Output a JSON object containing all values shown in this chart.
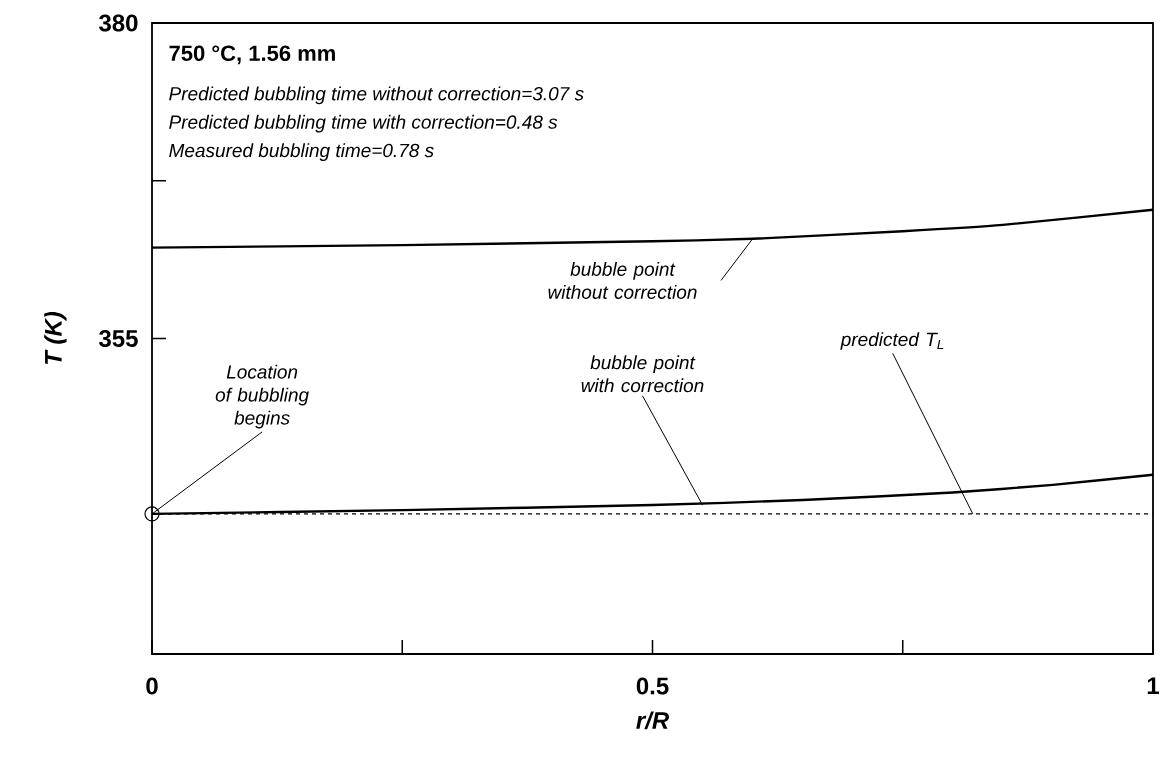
{
  "chart_data": {
    "type": "line",
    "title": "750 °C, 1.56 mm",
    "xlabel": "r/R",
    "ylabel": "T (K)",
    "xlim": [
      0,
      1
    ],
    "ylim": [
      330,
      380
    ],
    "xticks": [
      0,
      {
        "value": 0.25,
        "label": null
      },
      0.5,
      {
        "value": 0.75,
        "label": null
      },
      1
    ],
    "yticks": [
      355,
      {
        "value": 367.5,
        "label": null
      },
      380
    ],
    "series": [
      {
        "color": "#000000",
        "x": [
          0,
          0.25,
          0.5,
          0.6,
          0.75,
          0.85,
          1
        ],
        "values": [
          362.2,
          362.4,
          362.7,
          362.9,
          363.5,
          364.0,
          365.2
        ],
        "line_style": "solid",
        "marker": "none"
      },
      {
        "color": "#000000",
        "x": [
          0,
          0.25,
          0.5,
          0.65,
          0.8,
          0.9,
          1
        ],
        "values": [
          341.1,
          341.4,
          341.8,
          342.2,
          342.8,
          343.4,
          344.2
        ],
        "line_style": "solid",
        "marker": "none"
      },
      {
        "type": "scatter",
        "color": "#000000",
        "x": [
          0
        ],
        "values": [
          341.1
        ],
        "marker": "circle"
      }
    ],
    "ref_lines": [
      {
        "axis": "y",
        "value": 341.1,
        "line_style": "dashed",
        "color": "#000000"
      }
    ],
    "annotations": [
      "Predicted bubbling time without correction=3.07 s",
      "Predicted bubbling time with correction=0.48 s",
      "Measured bubbling time=0.78 s",
      {
        "text": "bubble point without correction",
        "x": 0.6,
        "y": 362.9
      },
      {
        "text": "bubble point with correction",
        "x": 0.55,
        "y": 341.8
      },
      {
        "text": "predicted T$_{L}$",
        "x": 0.82,
        "y": 341.1
      },
      {
        "text": "Location of bubbling begins",
        "x": 0,
        "y": 341.1
      }
    ],
    "grid": false
  }
}
